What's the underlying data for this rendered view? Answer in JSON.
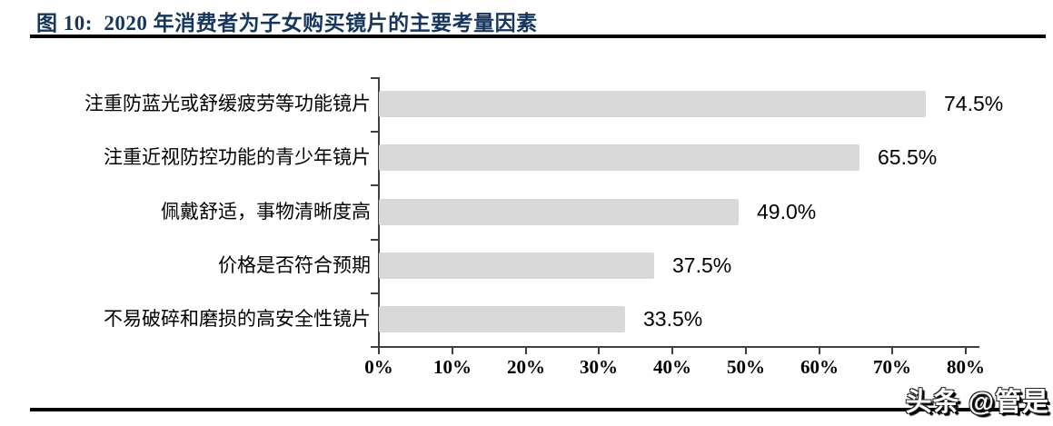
{
  "figure": {
    "title": "图 10:  2020 年消费者为子女购买镜片的主要考量因素",
    "title_color": "#17365D"
  },
  "watermark": {
    "text": "头条 @管是"
  },
  "colors": {
    "bar_fill": "#D9D9D9",
    "axis_line": "#3f3f3f",
    "rule_line": "#000000",
    "label_text": "#000000"
  },
  "chart_data": {
    "type": "bar",
    "orientation": "horizontal",
    "title": "2020 年消费者为子女购买镜片的主要考量因素",
    "categories": [
      "注重防蓝光或舒缓疲劳等功能镜片",
      "注重近视防控功能的青少年镜片",
      "佩戴舒适，事物清晰度高",
      "价格是否符合预期",
      "不易破碎和磨损的高安全性镜片"
    ],
    "values": [
      74.5,
      65.5,
      49.0,
      37.5,
      33.5
    ],
    "value_labels": [
      "74.5%",
      "65.5%",
      "49.0%",
      "37.5%",
      "33.5%"
    ],
    "xlabel": "",
    "ylabel": "",
    "xlim": [
      0,
      80
    ],
    "x_tick_step": 10,
    "x_tick_labels": [
      "0%",
      "10%",
      "20%",
      "30%",
      "40%",
      "50%",
      "60%",
      "70%",
      "80%"
    ],
    "grid": false,
    "legend": "none",
    "data_labels": "outside-end"
  }
}
